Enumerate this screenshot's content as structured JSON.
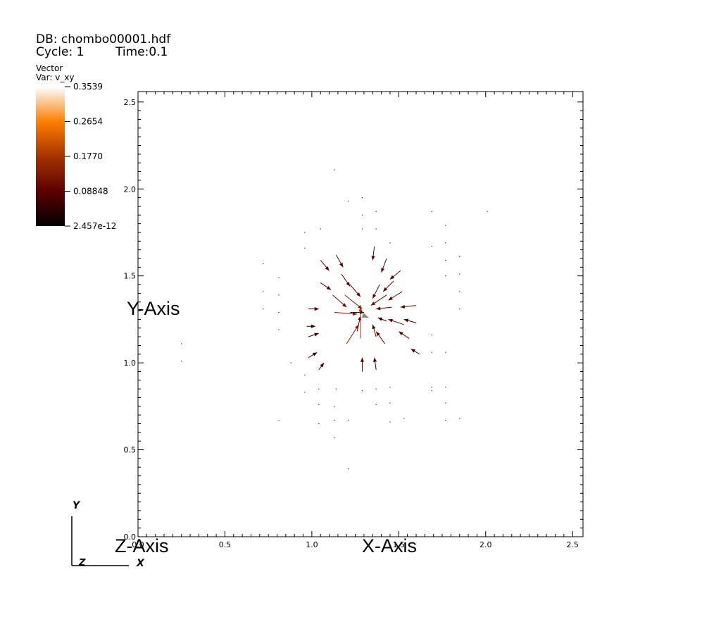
{
  "header": {
    "db_line": "DB: chombo00001.hdf",
    "cycle_line": "Cycle: 1",
    "time_line": "Time:0.1"
  },
  "legend": {
    "plot_type": "Vector",
    "var_label": "Var: v_xy",
    "ticks": [
      "0.3539",
      "0.2654",
      "0.1770",
      "0.08848",
      "2.457e-12"
    ],
    "range": [
      2.457e-12,
      0.3539
    ],
    "colormap": [
      "#000000",
      "#5c0000",
      "#a63300",
      "#ff7f00",
      "#ffffff"
    ]
  },
  "triad": {
    "x": "X",
    "y": "Y",
    "z": "Z"
  },
  "chart_data": {
    "type": "vector",
    "xlabel": "X-Axis",
    "ylabel": "Y-Axis",
    "zlabel": "Z-Axis",
    "xlim": [
      0,
      2.56
    ],
    "ylim": [
      0,
      2.56
    ],
    "xticks": [
      "0.0",
      "0.5",
      "1.0",
      "1.5",
      "2.0",
      "2.5"
    ],
    "yticks": [
      "0.0",
      "0.5",
      "1.0",
      "1.5",
      "2.0",
      "2.5"
    ],
    "center": [
      1.28,
      1.28
    ],
    "vectors": [
      {
        "x": 1.05,
        "y": 1.59,
        "u": 0.05,
        "v": -0.06
      },
      {
        "x": 1.14,
        "y": 1.62,
        "u": 0.04,
        "v": -0.07
      },
      {
        "x": 1.36,
        "y": 1.67,
        "u": -0.01,
        "v": -0.08
      },
      {
        "x": 1.43,
        "y": 1.6,
        "u": -0.03,
        "v": -0.08
      },
      {
        "x": 1.51,
        "y": 1.53,
        "u": -0.06,
        "v": -0.05
      },
      {
        "x": 1.05,
        "y": 1.46,
        "u": 0.06,
        "v": -0.04
      },
      {
        "x": 1.17,
        "y": 1.51,
        "u": 0.05,
        "v": -0.07
      },
      {
        "x": 1.22,
        "y": 1.45,
        "u": 0.06,
        "v": -0.07
      },
      {
        "x": 1.39,
        "y": 1.45,
        "u": -0.04,
        "v": -0.08
      },
      {
        "x": 1.47,
        "y": 1.47,
        "u": -0.06,
        "v": -0.06
      },
      {
        "x": 1.52,
        "y": 1.41,
        "u": -0.08,
        "v": -0.05
      },
      {
        "x": 1.12,
        "y": 1.39,
        "u": 0.08,
        "v": -0.07
      },
      {
        "x": 1.19,
        "y": 1.39,
        "u": 0.1,
        "v": -0.08
      },
      {
        "x": 1.43,
        "y": 1.39,
        "u": -0.09,
        "v": -0.06
      },
      {
        "x": 1.13,
        "y": 1.29,
        "u": 0.13,
        "v": -0.01
      },
      {
        "x": 1.22,
        "y": 1.29,
        "u": 0.08,
        "v": 0.0
      },
      {
        "x": 1.46,
        "y": 1.32,
        "u": -0.09,
        "v": -0.01
      },
      {
        "x": 1.6,
        "y": 1.33,
        "u": -0.09,
        "v": -0.01
      },
      {
        "x": 1.2,
        "y": 1.11,
        "u": 0.07,
        "v": 0.11
      },
      {
        "x": 1.26,
        "y": 1.18,
        "u": 0.02,
        "v": 0.09
      },
      {
        "x": 1.28,
        "y": 1.14,
        "u": 0.0,
        "v": 0.18
      },
      {
        "x": 1.37,
        "y": 1.15,
        "u": -0.02,
        "v": 0.07
      },
      {
        "x": 1.43,
        "y": 1.24,
        "u": -0.05,
        "v": 0.02
      },
      {
        "x": 1.53,
        "y": 1.22,
        "u": -0.09,
        "v": 0.03
      },
      {
        "x": 1.6,
        "y": 1.23,
        "u": -0.07,
        "v": 0.02
      },
      {
        "x": 1.42,
        "y": 1.11,
        "u": -0.05,
        "v": 0.07
      },
      {
        "x": 1.56,
        "y": 1.14,
        "u": -0.06,
        "v": 0.04
      },
      {
        "x": 1.62,
        "y": 1.05,
        "u": -0.05,
        "v": 0.03
      },
      {
        "x": 0.98,
        "y": 1.31,
        "u": 0.06,
        "v": 0.0
      },
      {
        "x": 0.97,
        "y": 1.21,
        "u": 0.05,
        "v": 0.0
      },
      {
        "x": 0.98,
        "y": 1.15,
        "u": 0.06,
        "v": 0.02
      },
      {
        "x": 0.98,
        "y": 1.03,
        "u": 0.05,
        "v": 0.03
      },
      {
        "x": 1.04,
        "y": 0.96,
        "u": 0.03,
        "v": 0.04
      },
      {
        "x": 1.37,
        "y": 0.96,
        "u": -0.01,
        "v": 0.07
      },
      {
        "x": 1.29,
        "y": 0.95,
        "u": 0.0,
        "v": 0.08
      }
    ],
    "points": [
      [
        1.13,
        2.11
      ],
      [
        1.21,
        1.93
      ],
      [
        1.29,
        1.95
      ],
      [
        1.29,
        1.85
      ],
      [
        1.37,
        1.87
      ],
      [
        1.29,
        1.77
      ],
      [
        1.37,
        1.77
      ],
      [
        0.96,
        1.75
      ],
      [
        1.05,
        1.77
      ],
      [
        0.96,
        1.66
      ],
      [
        1.45,
        1.69
      ],
      [
        1.69,
        1.87
      ],
      [
        1.77,
        1.79
      ],
      [
        1.69,
        1.67
      ],
      [
        1.77,
        1.69
      ],
      [
        1.85,
        1.61
      ],
      [
        1.77,
        1.59
      ],
      [
        1.85,
        1.51
      ],
      [
        1.77,
        1.5
      ],
      [
        1.85,
        1.41
      ],
      [
        1.85,
        1.31
      ],
      [
        0.72,
        1.57
      ],
      [
        0.81,
        1.49
      ],
      [
        0.72,
        1.41
      ],
      [
        0.81,
        1.39
      ],
      [
        0.72,
        1.31
      ],
      [
        0.81,
        1.29
      ],
      [
        0.81,
        1.19
      ],
      [
        1.69,
        1.16
      ],
      [
        1.69,
        1.06
      ],
      [
        1.77,
        1.06
      ],
      [
        0.88,
        1.0
      ],
      [
        0.96,
        0.93
      ],
      [
        1.04,
        0.85
      ],
      [
        0.96,
        0.83
      ],
      [
        1.14,
        0.85
      ],
      [
        1.04,
        0.76
      ],
      [
        1.13,
        0.75
      ],
      [
        1.37,
        0.85
      ],
      [
        1.45,
        0.86
      ],
      [
        1.29,
        0.84
      ],
      [
        1.37,
        0.76
      ],
      [
        1.45,
        0.77
      ],
      [
        1.69,
        0.84
      ],
      [
        1.69,
        0.86
      ],
      [
        1.77,
        0.86
      ],
      [
        1.77,
        0.77
      ],
      [
        0.81,
        0.67
      ],
      [
        1.04,
        0.65
      ],
      [
        1.13,
        0.67
      ],
      [
        1.21,
        0.67
      ],
      [
        1.13,
        0.57
      ],
      [
        1.21,
        0.39
      ],
      [
        1.45,
        0.66
      ],
      [
        1.53,
        0.68
      ],
      [
        1.77,
        0.67
      ],
      [
        1.85,
        0.68
      ],
      [
        2.01,
        1.87
      ],
      [
        0.25,
        1.11
      ],
      [
        0.25,
        1.01
      ]
    ]
  }
}
